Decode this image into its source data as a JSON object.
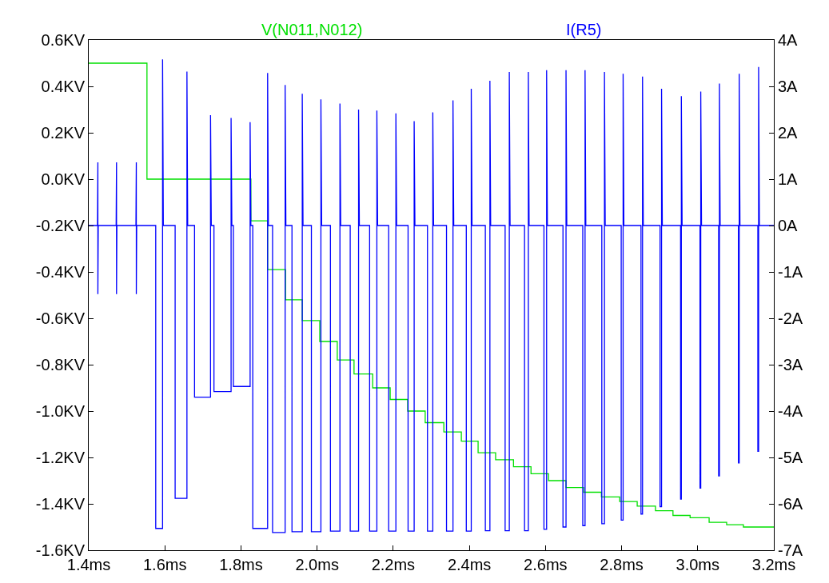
{
  "chart_data": {
    "type": "line",
    "legend": false,
    "marker": "none",
    "line_style": "solid",
    "xlim": [
      1.4,
      3.2
    ],
    "xticks": [
      {
        "value": 1.4,
        "label": "1.4ms"
      },
      {
        "value": 1.6,
        "label": "1.6ms"
      },
      {
        "value": 1.8,
        "label": "1.8ms"
      },
      {
        "value": 2.0,
        "label": "2.0ms"
      },
      {
        "value": 2.2,
        "label": "2.2ms"
      },
      {
        "value": 2.4,
        "label": "2.4ms"
      },
      {
        "value": 2.6,
        "label": "2.6ms"
      },
      {
        "value": 2.8,
        "label": "2.8ms"
      },
      {
        "value": 3.0,
        "label": "3.0ms"
      },
      {
        "value": 3.2,
        "label": "3.2ms"
      }
    ],
    "ylim": [
      -1.6,
      0.6
    ],
    "yticks": [
      {
        "value": 0.6,
        "label": "0.6KV"
      },
      {
        "value": 0.4,
        "label": "0.4KV"
      },
      {
        "value": 0.2,
        "label": "0.2KV"
      },
      {
        "value": 0.0,
        "label": "0.0KV"
      },
      {
        "value": -0.2,
        "label": "-0.2KV"
      },
      {
        "value": -0.4,
        "label": "-0.4KV"
      },
      {
        "value": -0.6,
        "label": "-0.6KV"
      },
      {
        "value": -0.8,
        "label": "-0.8KV"
      },
      {
        "value": -1.0,
        "label": "-1.0KV"
      },
      {
        "value": -1.2,
        "label": "-1.2KV"
      },
      {
        "value": -1.4,
        "label": "-1.4KV"
      },
      {
        "value": -1.6,
        "label": "-1.6KV"
      }
    ],
    "y2lim": [
      -7,
      4
    ],
    "y2ticks": [
      {
        "value": 4,
        "label": "4A"
      },
      {
        "value": 3,
        "label": "3A"
      },
      {
        "value": 2,
        "label": "2A"
      },
      {
        "value": 1,
        "label": "1A"
      },
      {
        "value": 0,
        "label": "0A"
      },
      {
        "value": -1,
        "label": "-1A"
      },
      {
        "value": -2,
        "label": "-2A"
      },
      {
        "value": -3,
        "label": "-3A"
      },
      {
        "value": -4,
        "label": "-4A"
      },
      {
        "value": -5,
        "label": "-5A"
      },
      {
        "value": -6,
        "label": "-6A"
      },
      {
        "value": -7,
        "label": "-7A"
      }
    ],
    "series": [
      {
        "name": "V(N011,N012)",
        "color": "#00e000",
        "type": "step",
        "x": [
          1.4,
          1.553,
          1.826,
          1.87,
          1.917,
          1.961,
          2.007,
          2.053,
          2.097,
          2.146,
          2.192,
          2.238,
          2.284,
          2.333,
          2.379,
          2.423,
          2.469,
          2.516,
          2.562,
          2.608,
          2.654,
          2.7,
          2.747,
          2.795,
          2.841,
          2.889,
          2.935,
          2.98,
          3.03,
          3.076,
          3.12,
          3.2
        ],
        "values": [
          0.5,
          0.0,
          -0.18,
          -0.39,
          -0.52,
          -0.61,
          -0.7,
          -0.78,
          -0.84,
          -0.9,
          -0.95,
          -1.0,
          -1.05,
          -1.09,
          -1.13,
          -1.18,
          -1.21,
          -1.24,
          -1.27,
          -1.3,
          -1.33,
          -1.35,
          -1.37,
          -1.39,
          -1.41,
          -1.43,
          -1.45,
          -1.46,
          -1.48,
          -1.49,
          -1.5,
          -1.5
        ]
      },
      {
        "name": "I(R5)",
        "color": "#0000ff",
        "axis": "y2",
        "x": [
          1.4,
          1.423,
          1.424,
          1.424,
          1.425,
          1.472,
          1.473,
          1.473,
          1.474,
          1.524,
          1.525,
          1.525,
          1.526,
          1.576,
          1.576,
          1.594,
          1.594,
          1.596,
          1.627,
          1.627,
          1.658,
          1.658,
          1.66,
          1.678,
          1.678,
          1.72,
          1.72,
          1.722,
          1.729,
          1.729,
          1.774,
          1.774,
          1.776,
          1.78,
          1.78,
          1.824,
          1.824,
          1.826,
          1.831,
          1.831,
          1.87,
          1.87,
          1.872,
          1.883,
          1.883,
          1.916,
          1.916,
          1.918,
          1.934,
          1.934,
          1.961,
          1.961,
          1.963,
          1.985,
          1.985,
          2.01,
          2.01,
          2.012,
          2.035,
          2.035,
          2.06,
          2.06,
          2.062,
          2.087,
          2.087,
          2.109,
          2.109,
          2.111,
          2.138,
          2.138,
          2.157,
          2.157,
          2.159,
          2.188,
          2.188,
          2.207,
          2.207,
          2.209,
          2.239,
          2.239,
          2.255,
          2.255,
          2.257,
          2.29,
          2.29,
          2.304,
          2.304,
          2.306,
          2.34,
          2.34,
          2.357,
          2.357,
          2.359,
          2.392,
          2.392,
          2.405,
          2.405,
          2.407,
          2.442,
          2.442,
          2.454,
          2.454,
          2.456,
          2.494,
          2.494,
          2.505,
          2.505,
          2.507,
          2.545,
          2.545,
          2.555,
          2.555,
          2.557,
          2.596,
          2.596,
          2.603,
          2.603,
          2.605,
          2.646,
          2.646,
          2.654,
          2.654,
          2.656,
          2.698,
          2.698,
          2.704,
          2.704,
          2.706,
          2.748,
          2.748,
          2.755,
          2.755,
          2.757,
          2.799,
          2.799,
          2.804,
          2.804,
          2.806,
          2.851,
          2.851,
          2.855,
          2.855,
          2.857,
          2.901,
          2.901,
          2.905,
          2.905,
          2.907,
          2.955,
          2.955,
          2.957,
          2.957,
          2.959,
          3.006,
          3.006,
          3.008,
          3.008,
          3.01,
          3.055,
          3.055,
          3.057,
          3.057,
          3.059,
          3.107,
          3.107,
          3.109,
          3.109,
          3.111,
          3.158,
          3.158,
          3.16,
          3.16,
          3.162,
          3.2
        ],
        "values": [
          0,
          0,
          1.36,
          -1.48,
          0,
          0,
          1.36,
          -1.48,
          0,
          0,
          1.36,
          -1.48,
          0,
          0,
          -6.53,
          -6.53,
          3.58,
          0,
          0,
          -5.88,
          -5.88,
          3.32,
          0,
          0,
          -3.7,
          -3.7,
          2.38,
          0,
          0,
          -3.58,
          -3.58,
          2.32,
          0,
          0,
          -3.47,
          -3.47,
          2.23,
          0,
          0,
          -6.53,
          -6.53,
          3.29,
          0,
          0,
          -6.62,
          -6.62,
          3.03,
          0,
          0,
          -6.6,
          -6.6,
          2.84,
          0,
          0,
          -6.6,
          -6.6,
          2.72,
          0,
          0,
          -6.59,
          -6.59,
          2.63,
          0,
          0,
          -6.59,
          -6.59,
          2.5,
          0,
          0,
          -6.59,
          -6.59,
          2.48,
          0,
          0,
          -6.59,
          -6.59,
          2.42,
          0,
          0,
          -6.59,
          -6.59,
          2.25,
          0,
          0,
          -6.59,
          -6.59,
          2.44,
          0,
          0,
          -6.59,
          -6.59,
          2.7,
          0,
          0,
          -6.59,
          -6.59,
          2.95,
          0,
          0,
          -6.58,
          -6.58,
          3.12,
          0,
          0,
          -6.58,
          -6.58,
          3.31,
          0,
          0,
          -6.58,
          -6.58,
          3.31,
          0,
          0,
          -6.55,
          -6.55,
          3.35,
          0,
          0,
          -6.5,
          -6.5,
          3.35,
          0,
          0,
          -6.47,
          -6.47,
          3.35,
          0,
          0,
          -6.43,
          -6.43,
          3.31,
          0,
          0,
          -6.35,
          -6.35,
          3.27,
          0,
          0,
          -6.22,
          -6.22,
          3.21,
          0,
          0,
          -6.06,
          -6.06,
          2.95,
          0,
          0,
          -5.9,
          -5.9,
          2.79,
          0,
          0,
          -5.66,
          -5.66,
          2.89,
          0,
          0,
          -5.4,
          -5.4,
          3.06,
          0,
          0,
          -5.12,
          -5.12,
          3.27,
          0,
          0,
          -4.87,
          -4.87,
          3.42,
          0,
          0
        ]
      }
    ]
  }
}
